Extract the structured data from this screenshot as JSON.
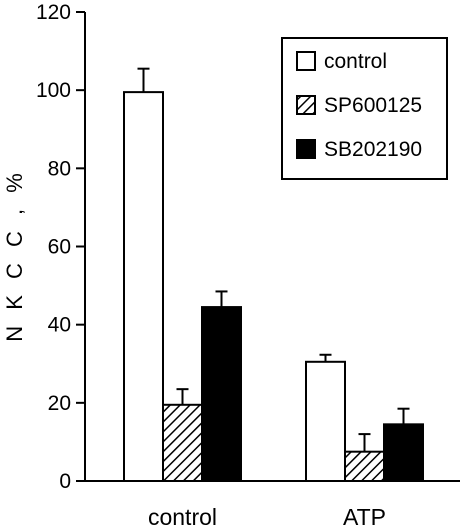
{
  "chart_data": {
    "type": "bar",
    "title": "",
    "xlabel": "",
    "ylabel": "N K C C , %",
    "ylim": [
      0,
      120
    ],
    "yticks": [
      0,
      20,
      40,
      60,
      80,
      100,
      120
    ],
    "categories": [
      "control",
      "ATP"
    ],
    "series": [
      {
        "name": "control",
        "values": [
          99.5,
          30.5
        ],
        "errors": [
          6.0,
          1.8
        ],
        "fill": "white"
      },
      {
        "name": "SP600125",
        "values": [
          19.5,
          7.5
        ],
        "errors": [
          4.0,
          4.5
        ],
        "fill": "hatch"
      },
      {
        "name": "SB202190",
        "values": [
          44.5,
          14.5
        ],
        "errors": [
          4.0,
          4.0
        ],
        "fill": "black"
      }
    ],
    "legend_position": "top-right",
    "grid": false,
    "colors": {
      "bar_stroke": "#000000",
      "hatch": "#000000",
      "solid": "#000000",
      "background": "#ffffff"
    }
  }
}
